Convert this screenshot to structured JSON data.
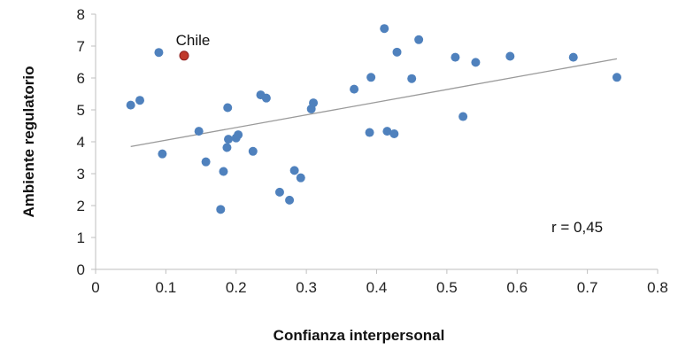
{
  "chart_data": {
    "type": "scatter",
    "title": "",
    "xlabel": "Confianza interpersonal",
    "ylabel": "Ambiente regulatorio",
    "xlim": [
      0,
      0.8
    ],
    "ylim": [
      0,
      8
    ],
    "x_ticks": [
      "0",
      "0.1",
      "0.2",
      "0.3",
      "0.4",
      "0.5",
      "0.6",
      "0.7",
      "0.8"
    ],
    "y_ticks": [
      "0",
      "1",
      "2",
      "3",
      "4",
      "5",
      "6",
      "7",
      "8"
    ],
    "grid": false,
    "legend": "none",
    "colors": {
      "points": "#4f81bd",
      "highlight": "#c0392b",
      "trendline": "#9a9a9a",
      "axis": "#bfbfbf"
    },
    "points": [
      {
        "x": 0.05,
        "y": 5.15
      },
      {
        "x": 0.063,
        "y": 5.3
      },
      {
        "x": 0.09,
        "y": 6.8
      },
      {
        "x": 0.095,
        "y": 3.62
      },
      {
        "x": 0.147,
        "y": 4.33
      },
      {
        "x": 0.157,
        "y": 3.37
      },
      {
        "x": 0.178,
        "y": 1.88
      },
      {
        "x": 0.182,
        "y": 3.07
      },
      {
        "x": 0.187,
        "y": 3.82
      },
      {
        "x": 0.188,
        "y": 5.07
      },
      {
        "x": 0.189,
        "y": 4.08
      },
      {
        "x": 0.2,
        "y": 4.12
      },
      {
        "x": 0.203,
        "y": 4.22
      },
      {
        "x": 0.224,
        "y": 3.7
      },
      {
        "x": 0.235,
        "y": 5.47
      },
      {
        "x": 0.243,
        "y": 5.37
      },
      {
        "x": 0.262,
        "y": 2.42
      },
      {
        "x": 0.276,
        "y": 2.17
      },
      {
        "x": 0.283,
        "y": 3.1
      },
      {
        "x": 0.292,
        "y": 2.87
      },
      {
        "x": 0.307,
        "y": 5.03
      },
      {
        "x": 0.31,
        "y": 5.22
      },
      {
        "x": 0.368,
        "y": 5.65
      },
      {
        "x": 0.39,
        "y": 4.29
      },
      {
        "x": 0.392,
        "y": 6.02
      },
      {
        "x": 0.411,
        "y": 7.55
      },
      {
        "x": 0.415,
        "y": 4.33
      },
      {
        "x": 0.425,
        "y": 4.25
      },
      {
        "x": 0.429,
        "y": 6.81
      },
      {
        "x": 0.45,
        "y": 5.98
      },
      {
        "x": 0.46,
        "y": 7.2
      },
      {
        "x": 0.512,
        "y": 6.65
      },
      {
        "x": 0.523,
        "y": 4.79
      },
      {
        "x": 0.541,
        "y": 6.49
      },
      {
        "x": 0.59,
        "y": 6.68
      },
      {
        "x": 0.68,
        "y": 6.65
      },
      {
        "x": 0.742,
        "y": 6.02
      }
    ],
    "highlight": {
      "label": "Chile",
      "x": 0.126,
      "y": 6.7
    },
    "trendline": {
      "x": [
        0.05,
        0.742
      ],
      "y": [
        3.85,
        6.6
      ]
    },
    "annotation": "r = 0,45"
  }
}
